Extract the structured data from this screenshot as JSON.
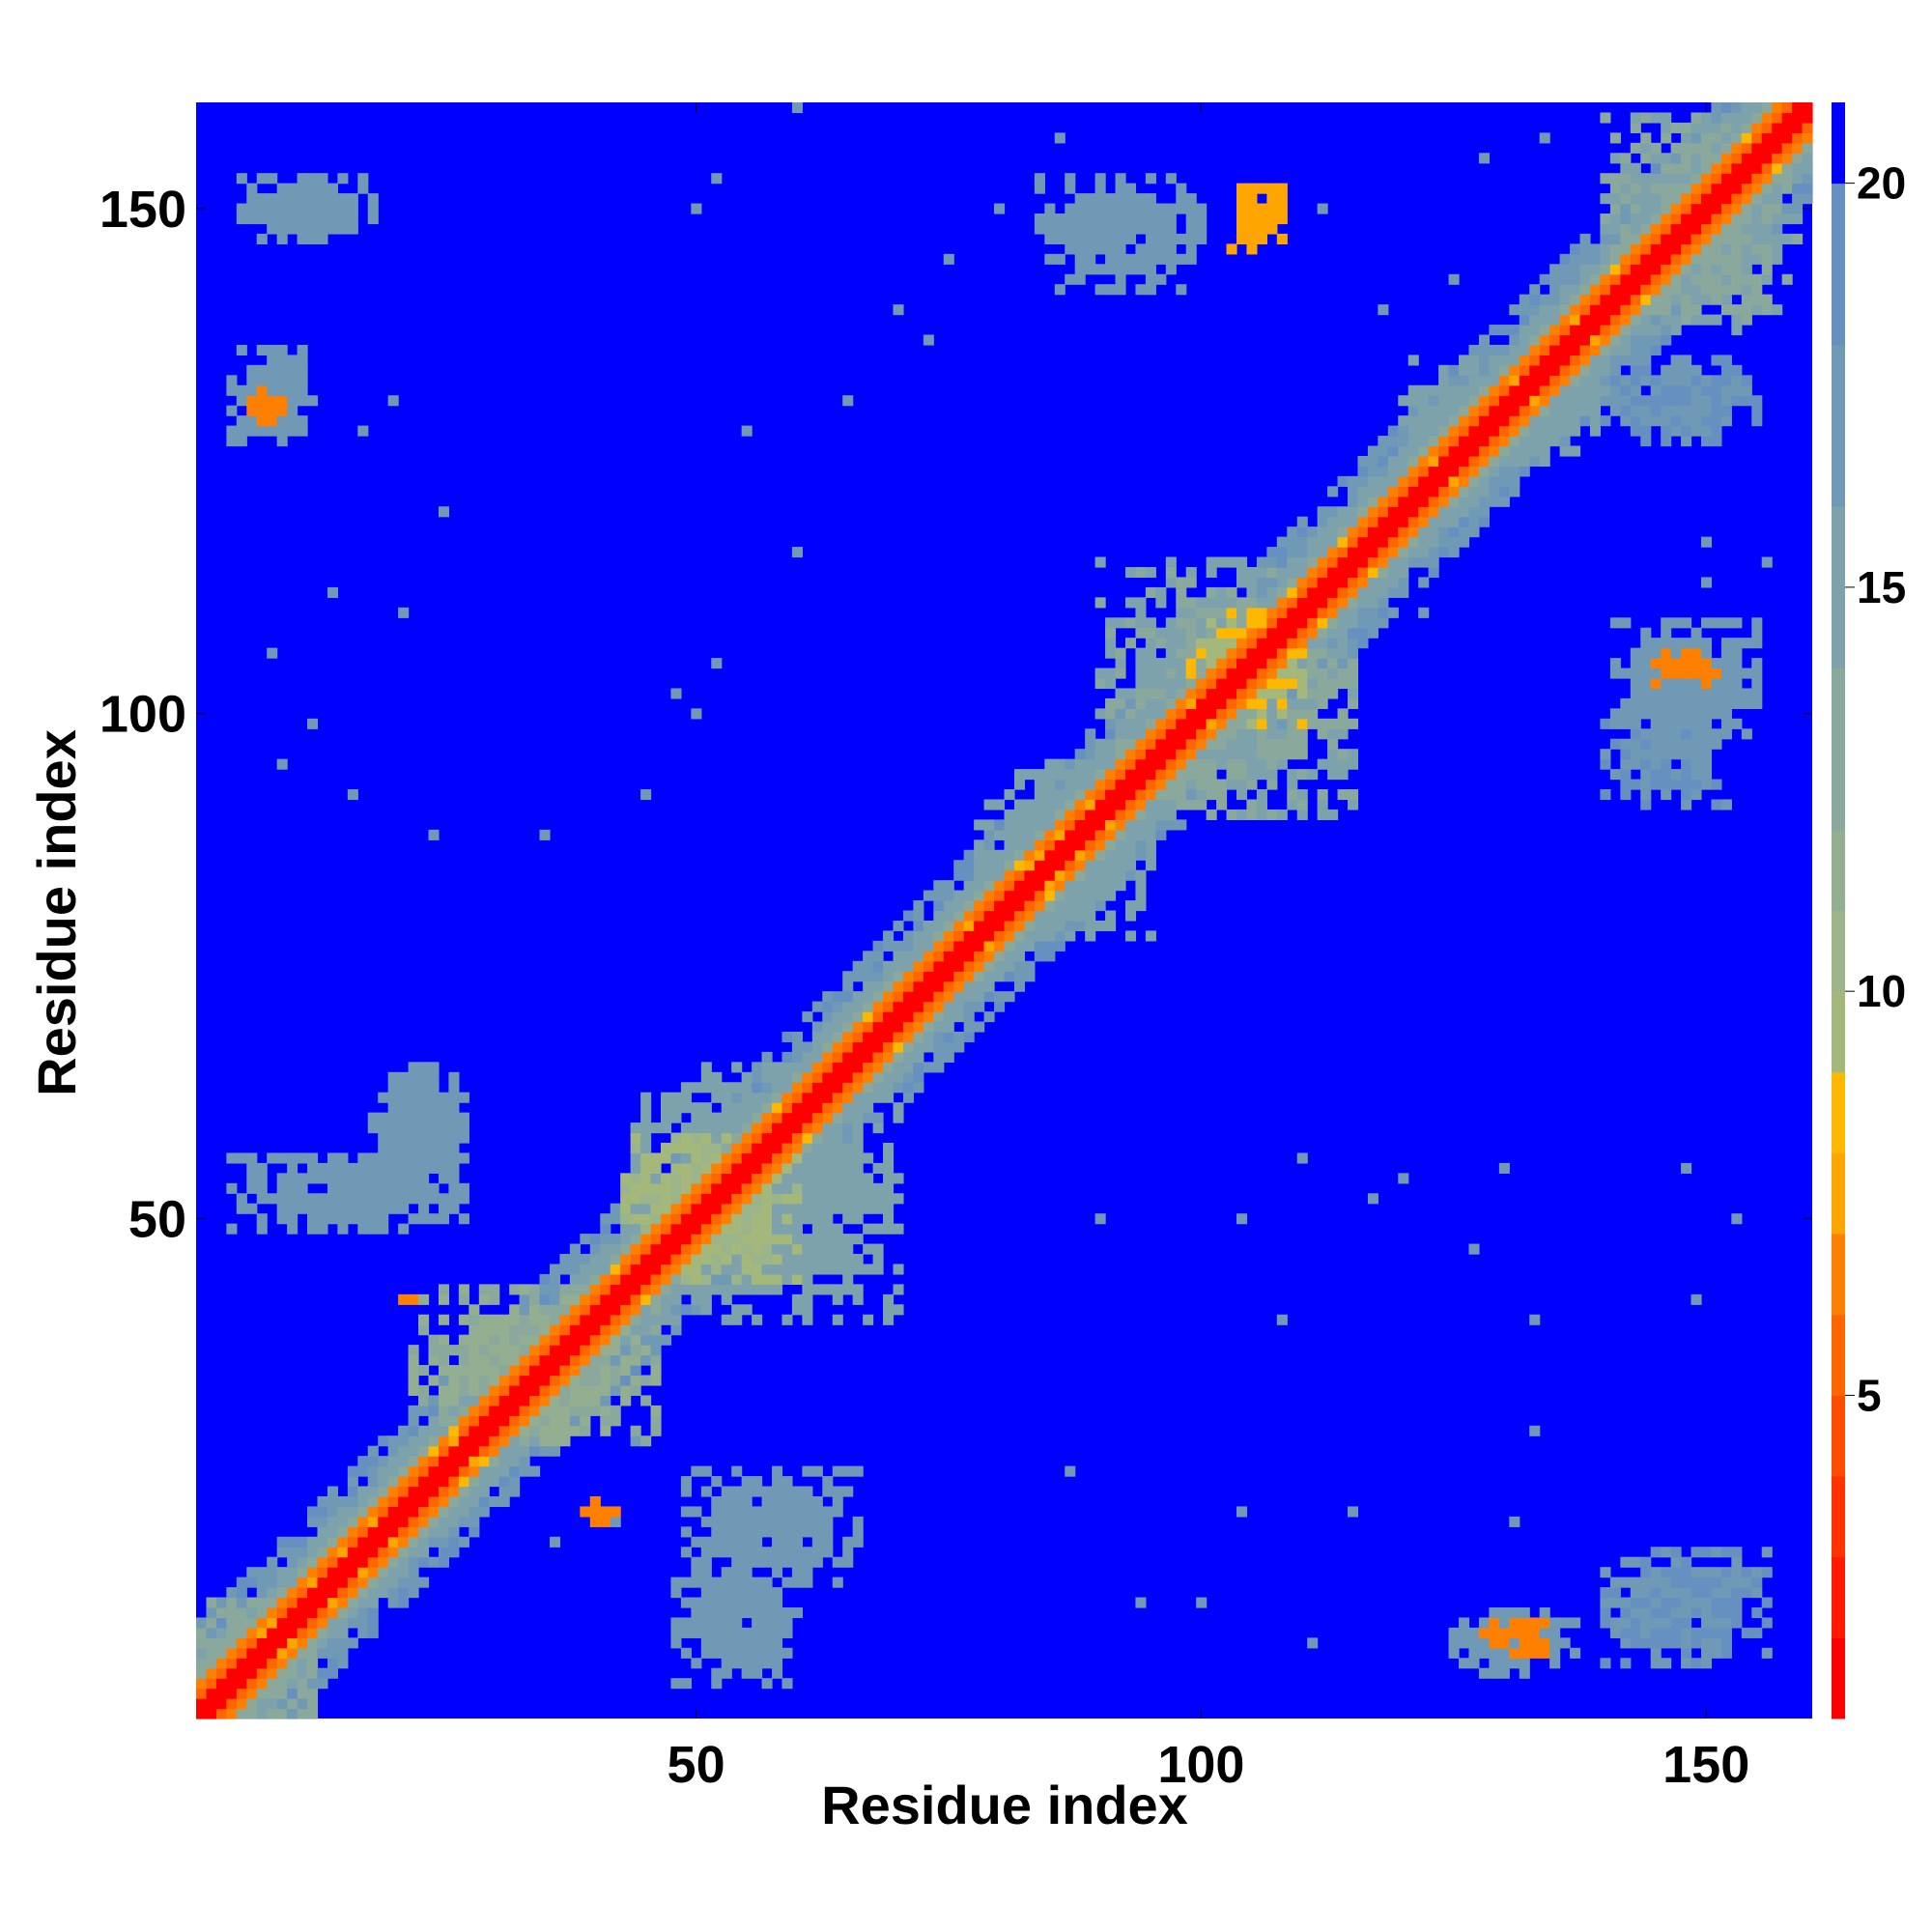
{
  "chart_data": {
    "type": "heatmap",
    "title": "",
    "xlabel": "Residue index",
    "ylabel": "Residue index",
    "n_residues": 160,
    "xlim": [
      1,
      160
    ],
    "ylim": [
      1,
      160
    ],
    "x_ticks": [
      50,
      100,
      150
    ],
    "y_ticks": [
      50,
      100,
      150
    ],
    "x_tick_labels": [
      "50",
      "100",
      "150"
    ],
    "y_tick_labels": [
      "50",
      "100",
      "150"
    ],
    "grid": false,
    "colorbar": {
      "placement": "right",
      "ticks": [
        5,
        10,
        15,
        20
      ],
      "tick_labels": [
        "5",
        "10",
        "15",
        "20"
      ],
      "range": [
        1,
        21
      ],
      "levels": [
        {
          "max": 2,
          "color": "#ff0000"
        },
        {
          "max": 3,
          "color": "#ff1a00"
        },
        {
          "max": 4,
          "color": "#ff3300"
        },
        {
          "max": 5,
          "color": "#ff4d00"
        },
        {
          "max": 6,
          "color": "#ff6600"
        },
        {
          "max": 7,
          "color": "#ff8000"
        },
        {
          "max": 8,
          "color": "#ffa500"
        },
        {
          "max": 9,
          "color": "#ffb800"
        },
        {
          "max": 10,
          "color": "#a3b87a"
        },
        {
          "max": 11,
          "color": "#9bb48a"
        },
        {
          "max": 12,
          "color": "#93ae90"
        },
        {
          "max": 14,
          "color": "#8aa89c"
        },
        {
          "max": 16,
          "color": "#7ea2ac"
        },
        {
          "max": 18,
          "color": "#7099b6"
        },
        {
          "max": 20,
          "color": "#6690c0"
        },
        {
          "max": 21,
          "color": "#0000ff"
        }
      ],
      "background_value": 21
    },
    "diagonal_band": {
      "description_units": "residues",
      "core_halfwidth": 1,
      "orange_halfwidth": 3,
      "green_halfwidth": 6,
      "gray_halfwidth": 9
    },
    "blobs": [
      {
        "x": [
          4,
          12
        ],
        "y": [
          127,
          136
        ],
        "value": 17
      },
      {
        "x": [
          6,
          9
        ],
        "y": [
          129,
          132
        ],
        "value": 7
      },
      {
        "x": [
          5,
          18
        ],
        "y": [
          147,
          153
        ],
        "value": 17
      },
      {
        "x": [
          4,
          27
        ],
        "y": [
          49,
          56
        ],
        "value": 17
      },
      {
        "x": [
          18,
          27
        ],
        "y": [
          54,
          65
        ],
        "value": 17
      },
      {
        "x": [
          22,
          46
        ],
        "y": [
          28,
          43
        ],
        "value": 12
      },
      {
        "x": [
          21,
          22
        ],
        "y": [
          42,
          43
        ],
        "value": 7
      },
      {
        "x": [
          39,
          42
        ],
        "y": [
          20,
          22
        ],
        "value": 7
      },
      {
        "x": [
          49,
          66
        ],
        "y": [
          14,
          25
        ],
        "value": 17
      },
      {
        "x": [
          48,
          60
        ],
        "y": [
          4,
          17
        ],
        "value": 17
      },
      {
        "x": [
          44,
          70
        ],
        "y": [
          40,
          65
        ],
        "value": 15
      },
      {
        "x": [
          43,
          60
        ],
        "y": [
          44,
          58
        ],
        "value": 10
      },
      {
        "x": [
          78,
          95
        ],
        "y": [
          78,
          95
        ],
        "value": 15
      },
      {
        "x": [
          90,
          115
        ],
        "y": [
          90,
          115
        ],
        "value": 14
      },
      {
        "x": [
          99,
          110
        ],
        "y": [
          99,
          110
        ],
        "value": 9
      },
      {
        "x": [
          84,
          100
        ],
        "y": [
          142,
          153
        ],
        "value": 17
      },
      {
        "x": [
          103,
          108
        ],
        "y": [
          146,
          153
        ],
        "value": 8
      },
      {
        "x": [
          120,
          140
        ],
        "y": [
          125,
          135
        ],
        "value": 15
      },
      {
        "x": [
          140,
          159
        ],
        "y": [
          138,
          159
        ],
        "value": 14
      },
      {
        "x": [
          140,
          155
        ],
        "y": [
          127,
          135
        ],
        "value": 18
      },
      {
        "x": [
          141,
          155
        ],
        "y": [
          97,
          109
        ],
        "value": 17
      },
      {
        "x": [
          145,
          151
        ],
        "y": [
          103,
          106
        ],
        "value": 7
      },
      {
        "x": [
          140,
          152
        ],
        "y": [
          91,
          100
        ],
        "value": 18
      },
      {
        "x": [
          125,
          137
        ],
        "y": [
          5,
          11
        ],
        "value": 17
      },
      {
        "x": [
          128,
          134
        ],
        "y": [
          7,
          10
        ],
        "value": 7
      },
      {
        "x": [
          140,
          156
        ],
        "y": [
          6,
          17
        ],
        "value": 18
      },
      {
        "x": [
          1,
          12
        ],
        "y": [
          1,
          12
        ],
        "value": 13
      }
    ],
    "scattered_contacts": [
      [
        50,
        150
      ],
      [
        52,
        153
      ],
      [
        60,
        116
      ],
      [
        55,
        128
      ],
      [
        65,
        131
      ],
      [
        17,
        128
      ],
      [
        20,
        131
      ],
      [
        73,
        137
      ],
      [
        48,
        102
      ],
      [
        52,
        105
      ],
      [
        50,
        100
      ],
      [
        45,
        92
      ],
      [
        120,
        116
      ],
      [
        122,
        110
      ],
      [
        130,
        125
      ],
      [
        150,
        93
      ],
      [
        133,
        40
      ],
      [
        127,
        47
      ],
      [
        110,
        56
      ],
      [
        117,
        52
      ],
      [
        104,
        50
      ],
      [
        120,
        54
      ],
      [
        104,
        21
      ],
      [
        115,
        21
      ],
      [
        94,
        12
      ],
      [
        100,
        12
      ],
      [
        111,
        8
      ],
      [
        131,
        20
      ],
      [
        133,
        29
      ],
      [
        148,
        55
      ],
      [
        153,
        50
      ],
      [
        149,
        42
      ],
      [
        90,
        50
      ],
      [
        130,
        55
      ],
      [
        108,
        40
      ],
      [
        87,
        25
      ],
      [
        60,
        15
      ],
      [
        54,
        6
      ],
      [
        44,
        28
      ],
      [
        42,
        20
      ],
      [
        36,
        18
      ],
      [
        27,
        23
      ],
      [
        150,
        117
      ],
      [
        156,
        115
      ],
      [
        150,
        113
      ],
      [
        161,
        118
      ],
      [
        25,
        120
      ],
      [
        21,
        110
      ],
      [
        8,
        106
      ],
      [
        12,
        99
      ],
      [
        9,
        95
      ],
      [
        16,
        92
      ],
      [
        14,
        112
      ],
      [
        24,
        88
      ],
      [
        35,
        88
      ],
      [
        70,
        140
      ],
      [
        75,
        145
      ],
      [
        80,
        150
      ],
      [
        86,
        157
      ],
      [
        60,
        160
      ],
      [
        93,
        152
      ],
      [
        112,
        150
      ],
      [
        118,
        140
      ],
      [
        125,
        143
      ],
      [
        128,
        155
      ],
      [
        134,
        157
      ],
      [
        145,
        155
      ]
    ]
  }
}
